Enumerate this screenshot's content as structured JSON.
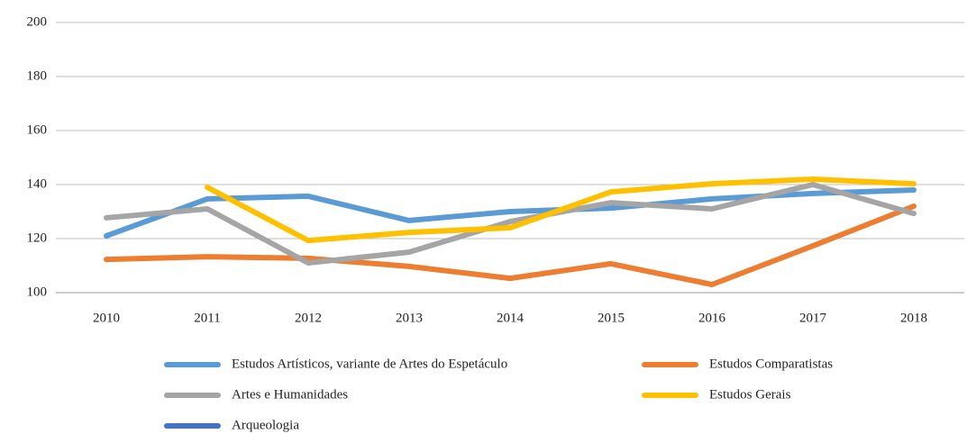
{
  "chart_data": {
    "type": "line",
    "categories": [
      "2010",
      "2011",
      "2012",
      "2013",
      "2014",
      "2015",
      "2016",
      "2017",
      "2018"
    ],
    "series": [
      {
        "name": "Estudos Artísticos, variante de Artes do Espetáculo",
        "color": "#5b9bd5",
        "values": [
          121,
          134.7,
          135.7,
          126.7,
          130,
          131.3,
          134.7,
          136.7,
          138
        ]
      },
      {
        "name": "Estudos Comparatistas",
        "color": "#ed7d31",
        "values": [
          112.3,
          113.3,
          112.7,
          109.7,
          105.3,
          110.7,
          103,
          117.3,
          132
        ]
      },
      {
        "name": "Artes e Humanidades",
        "color": "#a5a5a5",
        "values": [
          127.7,
          131,
          111,
          115,
          126.3,
          133.3,
          131,
          140,
          129.3
        ]
      },
      {
        "name": "Estudos Gerais",
        "color": "#ffc000",
        "values": [
          null,
          139,
          119.3,
          122.3,
          124,
          137.3,
          140.3,
          142,
          140.3
        ]
      },
      {
        "name": "Arqueologia",
        "color": "#4472c4",
        "values": [
          null,
          null,
          null,
          null,
          null,
          null,
          null,
          null,
          null
        ]
      }
    ],
    "ylim": [
      100,
      200
    ],
    "yticks": [
      100,
      120,
      140,
      160,
      180,
      200
    ],
    "grid": true
  }
}
